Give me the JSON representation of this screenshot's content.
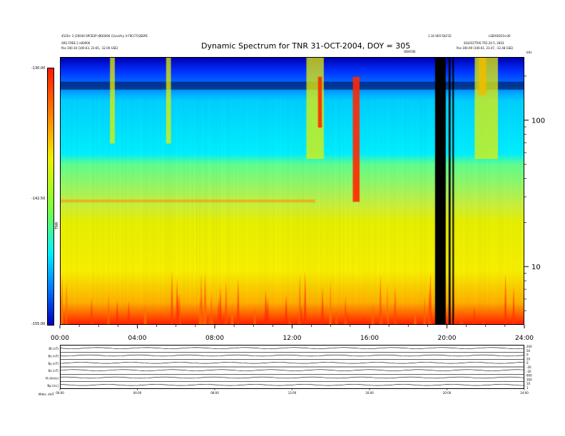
{
  "header": {
    "left_line1": "4520+ 3 (20040 SPCB3P (BO0000 (1/xuV/ry 4 FRCCT(QSEPE",
    "left_line2": "ARG FREE 2 e00000",
    "left_line3": "Pos     100.10 (100.63, 23.65, -12.00 GSE)",
    "right_top": "1.10 VEO DLFCE",
    "right_line1": "LSEROOO3+00",
    "right_line2": "SOLFECTRIS TR2.20 5, 2003",
    "right_line3": "Pos     100.09 (100.61, 23.47, -12.48 GSE)",
    "small_center": "OBVOSE",
    "khz": "kHz"
  },
  "title": "Dynamic Spectrum for TNR 31-OCT-2004, DOY = 305",
  "colorbar": {
    "labels": [
      "-130.00",
      "-142.50",
      "-155.00"
    ],
    "unit": "TNR"
  },
  "colors": {
    "background_low": "#ff2a00",
    "mid": "#e8f000",
    "high": "#00e8ff",
    "top": "#0010c0",
    "datagap": "#000000"
  },
  "chart_data": [
    {
      "type": "heatmap",
      "title": "Dynamic Spectrum for TNR 31-OCT-2004, DOY = 305",
      "x_tick_labels": [
        "00:00",
        "04:00",
        "08:00",
        "12:00",
        "16:00",
        "20:00",
        "24:00"
      ],
      "x_ticks_hours": [
        0,
        4,
        8,
        12,
        16,
        20,
        24
      ],
      "xlim": [
        0,
        24
      ],
      "y_scale": "log",
      "ylim": [
        4,
        270
      ],
      "y_tick_labels": [
        "100",
        "10"
      ],
      "y_ticks": [
        100,
        10
      ],
      "colorbar_range": [
        -155,
        -130
      ],
      "data_gaps_hours": [
        [
          19.35,
          19.9
        ],
        [
          20.05,
          20.15
        ],
        [
          20.25,
          20.3
        ]
      ],
      "bursts": [
        {
          "start_h": 2.55,
          "end_h": 2.8,
          "fmin": 70,
          "fmax": 270,
          "level": "yellow"
        },
        {
          "start_h": 5.45,
          "end_h": 5.7,
          "fmin": 70,
          "fmax": 270,
          "level": "yellow"
        },
        {
          "start_h": 12.7,
          "end_h": 13.6,
          "fmin": 55,
          "fmax": 270,
          "level": "yellow"
        },
        {
          "start_h": 13.3,
          "end_h": 13.5,
          "fmin": 90,
          "fmax": 200,
          "level": "red"
        },
        {
          "start_h": 15.1,
          "end_h": 15.45,
          "fmin": 28,
          "fmax": 200,
          "level": "red"
        },
        {
          "start_h": 21.6,
          "end_h": 22.0,
          "fmin": 150,
          "fmax": 270,
          "level": "red"
        },
        {
          "start_h": 21.4,
          "end_h": 22.6,
          "fmin": 55,
          "fmax": 270,
          "level": "yellow"
        }
      ]
    },
    {
      "type": "line",
      "panel_labels": [
        "Bt (nT)",
        "Bx (nT)",
        "By (nT)",
        "Bz (nT)",
        "Vt (km/s)",
        "Np (/cc)"
      ],
      "x_tick_labels": [
        "00:00",
        "04:00",
        "08:00",
        "12:00",
        "16:00",
        "20:00",
        "24:00"
      ],
      "xlim": [
        0,
        24
      ],
      "right_axis_labels": [
        "200",
        "50",
        "0",
        "20",
        "0",
        "-20",
        "-20",
        "600",
        "300",
        "10",
        "1"
      ]
    }
  ],
  "footer": {
    "label": "Mdes.   eV/F"
  }
}
